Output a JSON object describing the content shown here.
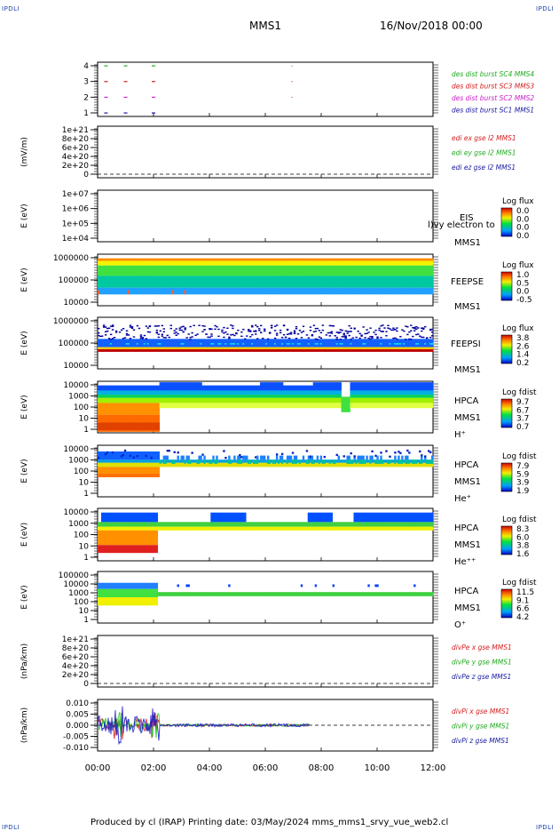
{
  "header": {
    "corner_label": "IPDLI",
    "title_left": "MMS1",
    "title_right": "16/Nov/2018 00:00"
  },
  "footer": {
    "text": "Produced by cl (IRAP)   Printing date: 03/May/2024   mms_mms1_srvy_vue_web2.cl"
  },
  "colors": {
    "red": "#d42020",
    "green": "#22cc22",
    "blue": "#1a1ad0",
    "magenta": "#cc22cc",
    "label_blue": "#1a1aa0"
  },
  "chart_data": [
    {
      "type": "scatter",
      "panel": "burst",
      "yticks": [
        "1",
        "2",
        "3",
        "4"
      ],
      "legend": [
        {
          "text": "des dist burst SC1 MMS1",
          "color": "#1a1aa0"
        },
        {
          "text": "des dist burst SC2 MMS2",
          "color": "#cc22cc"
        },
        {
          "text": "des dist burst SC3 MMS3",
          "color": "#d42020"
        },
        {
          "text": "des dist burst SC4 MMS4",
          "color": "#22aa22"
        }
      ],
      "marks_hours": [
        0.3,
        1.0,
        2.0,
        7.0
      ]
    },
    {
      "type": "line",
      "panel": "edi",
      "ylabel": "(mV/m)",
      "yticks": [
        "1e+21",
        "8e+20",
        "6e+20",
        "4e+20",
        "2e+20",
        "0"
      ],
      "legend": [
        {
          "text": "edi ex gse l2 MMS1",
          "color": "#d42020"
        },
        {
          "text": "edi ey gse l2 MMS1",
          "color": "#22aa22"
        },
        {
          "text": "edi ez gse l2 MMS1",
          "color": "#1a1aa0"
        }
      ]
    },
    {
      "type": "heatmap",
      "panel": "eis",
      "ylabel": "E (eV)",
      "yticks": [
        "1e+07",
        "1e+06",
        "1e+05",
        "1e+04"
      ],
      "labels": [
        "EIS",
        "MMS1"
      ],
      "overlay_text": "l)vy electron to",
      "colorbar": {
        "title": "Log flux",
        "ticks": [
          "0.0",
          "0.0",
          "0.0",
          "0.0"
        ]
      }
    },
    {
      "type": "heatmap",
      "panel": "feepse",
      "ylabel": "E (eV)",
      "yticks": [
        "1000000",
        "100000",
        "10000"
      ],
      "labels": [
        "FEEPSE",
        "MMS1"
      ],
      "colorbar": {
        "title": "Log flux",
        "ticks": [
          "1.0",
          "0.5",
          "0.0",
          "-0.5"
        ]
      }
    },
    {
      "type": "heatmap",
      "panel": "feepsi",
      "ylabel": "E (eV)",
      "yticks": [
        "1000000",
        "100000",
        "10000"
      ],
      "labels": [
        "FEEPSI",
        "MMS1"
      ],
      "colorbar": {
        "title": "Log flux",
        "ticks": [
          "3.8",
          "2.6",
          "1.4",
          "0.2"
        ]
      }
    },
    {
      "type": "heatmap",
      "panel": "hpca_h",
      "ylabel": "E (eV)",
      "yticks": [
        "10000",
        "1000",
        "100",
        "10",
        "1"
      ],
      "labels": [
        "HPCA",
        "MMS1",
        "H⁺"
      ],
      "colorbar": {
        "title": "Log fdist",
        "ticks": [
          "9.7",
          "6.7",
          "3.7",
          "0.7"
        ]
      }
    },
    {
      "type": "heatmap",
      "panel": "hpca_he",
      "ylabel": "E (eV)",
      "yticks": [
        "10000",
        "1000",
        "100",
        "10",
        "1"
      ],
      "labels": [
        "HPCA",
        "MMS1",
        "He⁺"
      ],
      "colorbar": {
        "title": "Log fdist",
        "ticks": [
          "7.9",
          "5.9",
          "3.9",
          "1.9"
        ]
      }
    },
    {
      "type": "heatmap",
      "panel": "hpca_hepp",
      "ylabel": "E (eV)",
      "yticks": [
        "10000",
        "1000",
        "100",
        "10",
        "1"
      ],
      "labels": [
        "HPCA",
        "MMS1",
        "He⁺⁺"
      ],
      "colorbar": {
        "title": "Log fdist",
        "ticks": [
          "8.3",
          "6.0",
          "3.8",
          "1.6"
        ]
      }
    },
    {
      "type": "heatmap",
      "panel": "hpca_o",
      "ylabel": "E (eV)",
      "yticks": [
        "100000",
        "10000",
        "1000",
        "100",
        "10",
        "1"
      ],
      "labels": [
        "HPCA",
        "MMS1",
        "O⁺"
      ],
      "colorbar": {
        "title": "Log fdist",
        "ticks": [
          "11.5",
          "9.1",
          "6.6",
          "4.2"
        ]
      }
    },
    {
      "type": "line",
      "panel": "divpe",
      "ylabel": "(nPa/km)",
      "yticks": [
        "1e+21",
        "8e+20",
        "6e+20",
        "4e+20",
        "2e+20",
        "0"
      ],
      "legend": [
        {
          "text": "divPe x gse MMS1",
          "color": "#d42020"
        },
        {
          "text": "divPe y gse MMS1",
          "color": "#22aa22"
        },
        {
          "text": "divPe z gse MMS1",
          "color": "#1a1aa0"
        }
      ]
    },
    {
      "type": "line",
      "panel": "divpi",
      "ylabel": "(nPa/km)",
      "yticks": [
        "0.010",
        "0.005",
        "0.000",
        "-0.005",
        "-0.010"
      ],
      "legend": [
        {
          "text": "divPi x gse MMS1",
          "color": "#d42020"
        },
        {
          "text": "divPi y gse MMS1",
          "color": "#22aa22"
        },
        {
          "text": "divPi z gse MMS1",
          "color": "#1a1aa0"
        }
      ]
    }
  ],
  "xaxis": {
    "ticks": [
      "00:00",
      "02:00",
      "04:00",
      "06:00",
      "08:00",
      "10:00",
      "12:00"
    ],
    "range_hours": [
      0,
      12
    ]
  }
}
